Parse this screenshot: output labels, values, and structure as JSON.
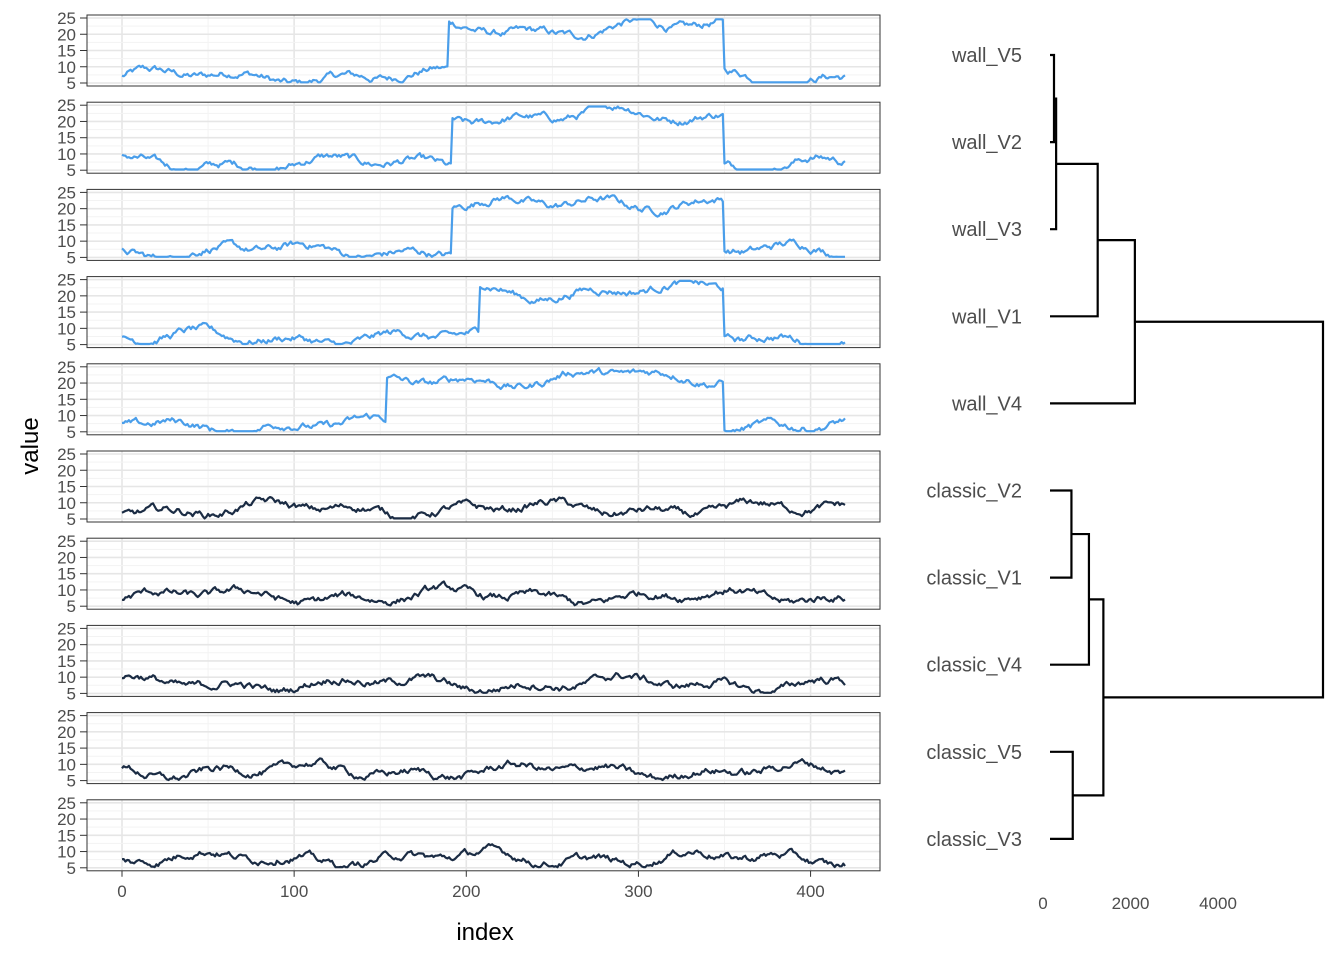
{
  "chart_data": {
    "type": "line",
    "layout": "small multiples with dendrogram",
    "xlabel": "index",
    "ylabel": "value",
    "x_range": [
      0,
      420
    ],
    "x_ticks": [
      0,
      100,
      200,
      300,
      400
    ],
    "y_range": [
      5,
      25
    ],
    "y_ticks": [
      5,
      10,
      15,
      20,
      25
    ],
    "grid": true,
    "series_colors": {
      "wall": "#4a9eea",
      "classic": "#1b2c44"
    },
    "panels": [
      {
        "name": "wall_V5",
        "kind": "wall",
        "segments": [
          {
            "x": [
              0,
              190
            ],
            "base": 7
          },
          {
            "x": [
              190,
              350
            ],
            "base": 21
          },
          {
            "x": [
              350,
              420
            ],
            "base": 7
          }
        ]
      },
      {
        "name": "wall_V2",
        "kind": "wall",
        "segments": [
          {
            "x": [
              0,
              192
            ],
            "base": 7
          },
          {
            "x": [
              192,
              350
            ],
            "base": 21
          },
          {
            "x": [
              350,
              420
            ],
            "base": 7
          }
        ]
      },
      {
        "name": "wall_V3",
        "kind": "wall",
        "segments": [
          {
            "x": [
              0,
              192
            ],
            "base": 7
          },
          {
            "x": [
              192,
              350
            ],
            "base": 21
          },
          {
            "x": [
              350,
              420
            ],
            "base": 7
          }
        ]
      },
      {
        "name": "wall_V1",
        "kind": "wall",
        "segments": [
          {
            "x": [
              0,
              208
            ],
            "base": 7
          },
          {
            "x": [
              208,
              350
            ],
            "base": 21
          },
          {
            "x": [
              350,
              420
            ],
            "base": 7
          }
        ]
      },
      {
        "name": "wall_V4",
        "kind": "wall",
        "segments": [
          {
            "x": [
              0,
              154
            ],
            "base": 7
          },
          {
            "x": [
              154,
              350
            ],
            "base": 21
          },
          {
            "x": [
              350,
              420
            ],
            "base": 7
          }
        ]
      },
      {
        "name": "classic_V2",
        "kind": "classic",
        "segments": [
          {
            "x": [
              0,
              420
            ],
            "base": 8
          }
        ]
      },
      {
        "name": "classic_V1",
        "kind": "classic",
        "segments": [
          {
            "x": [
              0,
              420
            ],
            "base": 8
          }
        ]
      },
      {
        "name": "classic_V4",
        "kind": "classic",
        "segments": [
          {
            "x": [
              0,
              420
            ],
            "base": 8
          }
        ]
      },
      {
        "name": "classic_V5",
        "kind": "classic",
        "segments": [
          {
            "x": [
              0,
              420
            ],
            "base": 8
          }
        ]
      },
      {
        "name": "classic_V3",
        "kind": "classic",
        "segments": [
          {
            "x": [
              0,
              420
            ],
            "base": 8
          }
        ]
      }
    ],
    "dendrogram": {
      "x_range": [
        0,
        5500
      ],
      "x_ticks": [
        0,
        2000,
        4000
      ],
      "leaf_order": [
        "wall_V5",
        "wall_V2",
        "wall_V3",
        "wall_V1",
        "wall_V4",
        "classic_V2",
        "classic_V1",
        "classic_V4",
        "classic_V5",
        "classic_V3"
      ],
      "merges": [
        {
          "id": "m1",
          "left": "wall_V5",
          "right": "wall_V2",
          "height": 150
        },
        {
          "id": "m2",
          "left": "m1",
          "right": "wall_V3",
          "height": 300
        },
        {
          "id": "m3",
          "left": "m2",
          "right": "wall_V1",
          "height": 1250
        },
        {
          "id": "m4",
          "left": "m3",
          "right": "wall_V4",
          "height": 2100
        },
        {
          "id": "m5",
          "left": "classic_V2",
          "right": "classic_V1",
          "height": 650
        },
        {
          "id": "m6",
          "left": "m5",
          "right": "classic_V4",
          "height": 1050
        },
        {
          "id": "m7",
          "left": "classic_V5",
          "right": "classic_V3",
          "height": 680
        },
        {
          "id": "m8",
          "left": "m6",
          "right": "m7",
          "height": 1380
        },
        {
          "id": "m9",
          "left": "m4",
          "right": "m8",
          "height": 6400
        }
      ]
    }
  }
}
